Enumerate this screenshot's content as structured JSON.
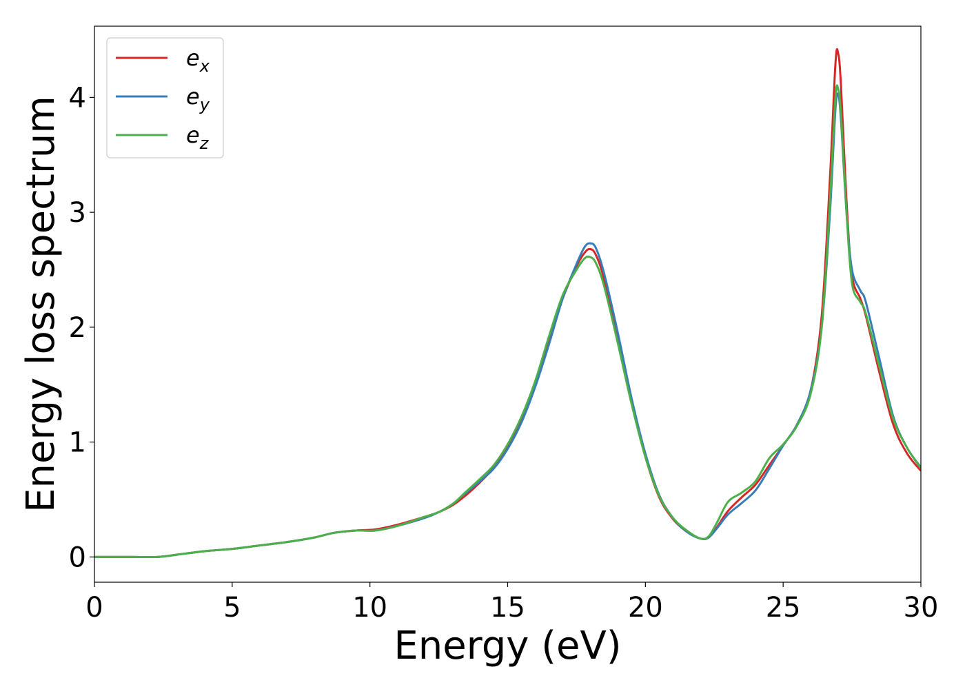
{
  "chart_data": {
    "type": "line",
    "title": "",
    "xlabel": "Energy (eV)",
    "ylabel": "Energy loss spectrum",
    "xlim": [
      0,
      30
    ],
    "ylim": [
      -0.22,
      4.62
    ],
    "xticks": [
      0,
      5,
      10,
      15,
      20,
      25,
      30
    ],
    "yticks": [
      0,
      1,
      2,
      3,
      4
    ],
    "grid": false,
    "legend_position": "top-left",
    "series": [
      {
        "name_base": "e",
        "name_sub": "x",
        "color": "#d62728",
        "points": [
          [
            0,
            0.0
          ],
          [
            1,
            0.0
          ],
          [
            2.3,
            0.0
          ],
          [
            3,
            0.02
          ],
          [
            4,
            0.05
          ],
          [
            5,
            0.07
          ],
          [
            6,
            0.1
          ],
          [
            7,
            0.13
          ],
          [
            8,
            0.17
          ],
          [
            8.7,
            0.21
          ],
          [
            9.5,
            0.23
          ],
          [
            10.2,
            0.24
          ],
          [
            11,
            0.28
          ],
          [
            12,
            0.35
          ],
          [
            12.5,
            0.39
          ],
          [
            13,
            0.45
          ],
          [
            13.5,
            0.54
          ],
          [
            14,
            0.65
          ],
          [
            14.5,
            0.78
          ],
          [
            15,
            0.97
          ],
          [
            15.5,
            1.2
          ],
          [
            16,
            1.5
          ],
          [
            16.5,
            1.88
          ],
          [
            17,
            2.25
          ],
          [
            17.5,
            2.53
          ],
          [
            17.8,
            2.65
          ],
          [
            18,
            2.68
          ],
          [
            18.2,
            2.63
          ],
          [
            18.5,
            2.42
          ],
          [
            19,
            1.9
          ],
          [
            19.5,
            1.35
          ],
          [
            20,
            0.87
          ],
          [
            20.5,
            0.52
          ],
          [
            21,
            0.33
          ],
          [
            21.5,
            0.22
          ],
          [
            22,
            0.16
          ],
          [
            22.3,
            0.17
          ],
          [
            22.6,
            0.26
          ],
          [
            23,
            0.4
          ],
          [
            23.5,
            0.52
          ],
          [
            24,
            0.63
          ],
          [
            24.5,
            0.8
          ],
          [
            25,
            0.97
          ],
          [
            25.5,
            1.15
          ],
          [
            26,
            1.45
          ],
          [
            26.4,
            2.1
          ],
          [
            26.7,
            3.3
          ],
          [
            26.9,
            4.3
          ],
          [
            27,
            4.38
          ],
          [
            27.1,
            4.1
          ],
          [
            27.3,
            3.1
          ],
          [
            27.5,
            2.45
          ],
          [
            27.8,
            2.25
          ],
          [
            28,
            2.1
          ],
          [
            28.5,
            1.6
          ],
          [
            29,
            1.15
          ],
          [
            29.5,
            0.9
          ],
          [
            30,
            0.75
          ]
        ]
      },
      {
        "name_base": "e",
        "name_sub": "y",
        "color": "#377eb8",
        "points": [
          [
            0,
            0.0
          ],
          [
            1,
            0.0
          ],
          [
            2.3,
            0.0
          ],
          [
            3,
            0.02
          ],
          [
            4,
            0.05
          ],
          [
            5,
            0.07
          ],
          [
            6,
            0.1
          ],
          [
            7,
            0.13
          ],
          [
            8,
            0.17
          ],
          [
            8.7,
            0.21
          ],
          [
            9.5,
            0.23
          ],
          [
            10.2,
            0.23
          ],
          [
            11,
            0.27
          ],
          [
            12,
            0.34
          ],
          [
            12.5,
            0.39
          ],
          [
            13,
            0.46
          ],
          [
            13.5,
            0.56
          ],
          [
            14,
            0.66
          ],
          [
            14.5,
            0.77
          ],
          [
            15,
            0.94
          ],
          [
            15.5,
            1.17
          ],
          [
            16,
            1.48
          ],
          [
            16.5,
            1.85
          ],
          [
            17,
            2.25
          ],
          [
            17.5,
            2.55
          ],
          [
            17.8,
            2.7
          ],
          [
            18,
            2.73
          ],
          [
            18.2,
            2.69
          ],
          [
            18.5,
            2.47
          ],
          [
            19,
            1.95
          ],
          [
            19.5,
            1.38
          ],
          [
            20,
            0.9
          ],
          [
            20.5,
            0.54
          ],
          [
            21,
            0.34
          ],
          [
            21.5,
            0.22
          ],
          [
            22,
            0.16
          ],
          [
            22.3,
            0.17
          ],
          [
            22.6,
            0.25
          ],
          [
            23,
            0.37
          ],
          [
            23.5,
            0.47
          ],
          [
            24,
            0.58
          ],
          [
            24.5,
            0.77
          ],
          [
            25,
            0.97
          ],
          [
            25.5,
            1.15
          ],
          [
            26,
            1.45
          ],
          [
            26.4,
            2.0
          ],
          [
            26.7,
            3.0
          ],
          [
            26.9,
            3.9
          ],
          [
            27,
            4.02
          ],
          [
            27.1,
            3.8
          ],
          [
            27.3,
            3.0
          ],
          [
            27.5,
            2.5
          ],
          [
            27.8,
            2.32
          ],
          [
            28,
            2.22
          ],
          [
            28.5,
            1.72
          ],
          [
            29,
            1.22
          ],
          [
            29.5,
            0.95
          ],
          [
            30,
            0.78
          ]
        ]
      },
      {
        "name_base": "e",
        "name_sub": "z",
        "color": "#4daf4a",
        "points": [
          [
            0,
            0.0
          ],
          [
            1,
            0.0
          ],
          [
            2.3,
            0.0
          ],
          [
            3,
            0.02
          ],
          [
            4,
            0.05
          ],
          [
            5,
            0.07
          ],
          [
            6,
            0.1
          ],
          [
            7,
            0.13
          ],
          [
            8,
            0.17
          ],
          [
            8.7,
            0.21
          ],
          [
            9.5,
            0.23
          ],
          [
            10.2,
            0.23
          ],
          [
            11,
            0.27
          ],
          [
            12,
            0.35
          ],
          [
            12.5,
            0.39
          ],
          [
            13,
            0.46
          ],
          [
            13.5,
            0.57
          ],
          [
            14,
            0.68
          ],
          [
            14.5,
            0.8
          ],
          [
            15,
            0.98
          ],
          [
            15.5,
            1.22
          ],
          [
            16,
            1.53
          ],
          [
            16.5,
            1.92
          ],
          [
            17,
            2.28
          ],
          [
            17.5,
            2.5
          ],
          [
            17.8,
            2.6
          ],
          [
            18,
            2.61
          ],
          [
            18.2,
            2.56
          ],
          [
            18.5,
            2.36
          ],
          [
            19,
            1.86
          ],
          [
            19.5,
            1.33
          ],
          [
            20,
            0.87
          ],
          [
            20.5,
            0.53
          ],
          [
            21,
            0.34
          ],
          [
            21.5,
            0.23
          ],
          [
            22,
            0.16
          ],
          [
            22.3,
            0.18
          ],
          [
            22.6,
            0.3
          ],
          [
            23,
            0.48
          ],
          [
            23.5,
            0.56
          ],
          [
            24,
            0.66
          ],
          [
            24.5,
            0.86
          ],
          [
            25,
            0.98
          ],
          [
            25.5,
            1.14
          ],
          [
            26,
            1.42
          ],
          [
            26.4,
            2.0
          ],
          [
            26.7,
            3.1
          ],
          [
            26.9,
            4.0
          ],
          [
            27,
            4.07
          ],
          [
            27.1,
            3.85
          ],
          [
            27.3,
            3.0
          ],
          [
            27.5,
            2.38
          ],
          [
            27.8,
            2.22
          ],
          [
            28,
            2.12
          ],
          [
            28.5,
            1.65
          ],
          [
            29,
            1.2
          ],
          [
            29.5,
            0.95
          ],
          [
            30,
            0.77
          ]
        ]
      }
    ]
  }
}
